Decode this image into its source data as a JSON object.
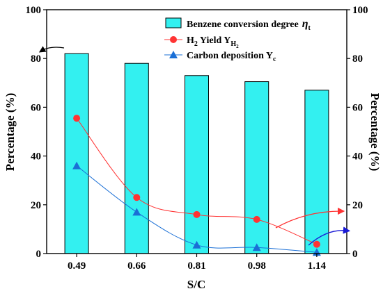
{
  "chart_data": {
    "type": "bar",
    "categories": [
      "0.49",
      "0.66",
      "0.81",
      "0.98",
      "1.14"
    ],
    "series": [
      {
        "name": "Benzene conversion degree",
        "kind": "bar",
        "color": "#33f0f0",
        "values": [
          82,
          78,
          73,
          70.5,
          67
        ]
      },
      {
        "name": "H2 Yield",
        "kind": "line-scatter",
        "marker": "circle",
        "color": "#ff3333",
        "values": [
          55.5,
          23,
          16,
          14,
          3.8
        ]
      },
      {
        "name": "Carbon deposition",
        "kind": "line-scatter",
        "marker": "triangle",
        "color": "#1a6fd6",
        "values": [
          36,
          17,
          3.5,
          2.5,
          0.5
        ]
      }
    ],
    "xlabel": "S/C",
    "ylabel": "Percentage (%)",
    "y2label": "Percentage (%)",
    "ylim": [
      0,
      100
    ],
    "y2lim": [
      0,
      100
    ],
    "yticks": [
      0,
      20,
      40,
      60,
      80,
      100
    ],
    "legend": [
      {
        "label": "Benzene conversion degree",
        "symbol": "η",
        "subscript": "t"
      },
      {
        "label": "H",
        "sub1": "2",
        "label2": " Yield Y",
        "sub2": "H",
        "sub3": "2"
      },
      {
        "label": "Carbon deposition Y",
        "sub1": "c"
      }
    ],
    "legend_position": "top-right",
    "grid": false
  }
}
